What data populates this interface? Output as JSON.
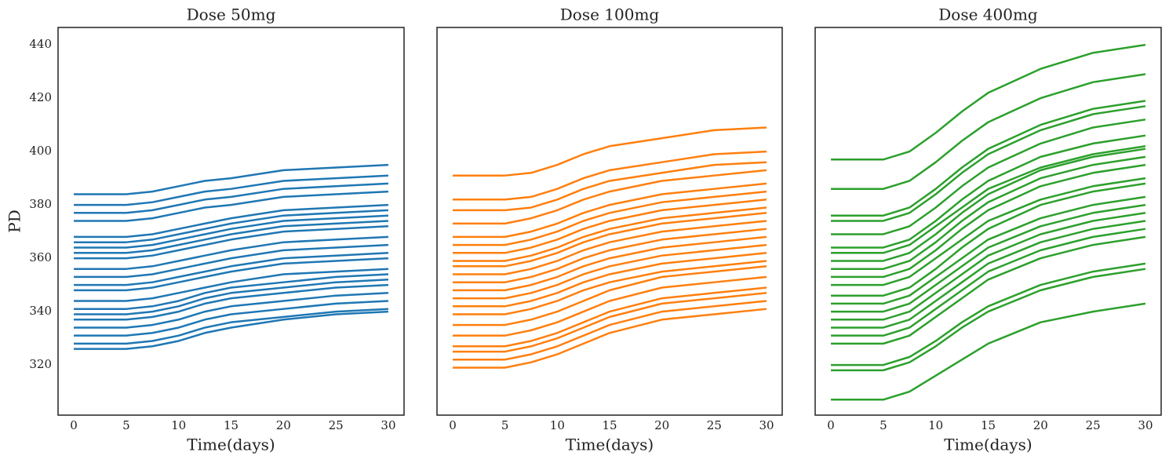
{
  "chart_data": [
    {
      "type": "line",
      "title": "Dose 50mg",
      "x_label": "Time(days)",
      "y_label": "PD",
      "color": "#1f77b4",
      "x": [
        0,
        5,
        7.5,
        10,
        12.5,
        15,
        20,
        25,
        30
      ],
      "xlim": [
        -1.5,
        31.5
      ],
      "xticks": [
        0,
        5,
        10,
        15,
        20,
        25,
        30
      ],
      "ylim": [
        301.2,
        446.5
      ],
      "yticks": [
        320,
        340,
        360,
        380,
        400,
        420,
        440
      ],
      "series": [
        {
          "values": [
            384,
            384,
            385,
            387,
            389,
            390,
            393,
            394,
            395
          ]
        },
        {
          "values": [
            380,
            380,
            381,
            383,
            385,
            386,
            389,
            390,
            391
          ]
        },
        {
          "values": [
            377,
            377,
            378,
            380,
            382,
            383,
            386,
            387,
            388
          ]
        },
        {
          "values": [
            374,
            374,
            375,
            377,
            379,
            380,
            383,
            384,
            385
          ]
        },
        {
          "values": [
            368,
            368,
            369,
            371,
            373,
            375,
            378,
            379,
            380
          ]
        },
        {
          "values": [
            366,
            366,
            367,
            369,
            371,
            373,
            376,
            377,
            378
          ]
        },
        {
          "values": [
            364,
            364,
            365,
            367,
            369,
            371,
            374,
            375,
            376
          ]
        },
        {
          "values": [
            362,
            362,
            363,
            365,
            367,
            369,
            372,
            373,
            374
          ]
        },
        {
          "values": [
            360,
            360,
            361,
            363,
            365,
            367,
            370,
            371,
            372
          ]
        },
        {
          "values": [
            356,
            356,
            357,
            359,
            361,
            363,
            366,
            367,
            368
          ]
        },
        {
          "values": [
            353,
            353,
            354,
            356,
            358,
            360,
            363,
            364,
            365
          ]
        },
        {
          "values": [
            350,
            350,
            351,
            353,
            355,
            357,
            360,
            361,
            362
          ]
        },
        {
          "values": [
            348,
            348,
            349,
            351,
            353,
            355,
            358,
            359,
            360
          ]
        },
        {
          "values": [
            344,
            344,
            345,
            347,
            349,
            351,
            354,
            355,
            356
          ]
        },
        {
          "values": [
            341,
            341,
            342,
            344,
            347,
            349,
            351,
            353,
            354
          ]
        },
        {
          "values": [
            339,
            339,
            340,
            342,
            345,
            347,
            349,
            351,
            352
          ]
        },
        {
          "values": [
            337,
            337,
            338,
            340,
            343,
            345,
            347,
            349,
            350
          ]
        },
        {
          "values": [
            334,
            334,
            335,
            337,
            340,
            342,
            344,
            346,
            347
          ]
        },
        {
          "values": [
            331,
            331,
            332,
            334,
            337,
            339,
            341,
            343,
            344
          ]
        },
        {
          "values": [
            328,
            328,
            329,
            331,
            334,
            336,
            338,
            340,
            341
          ]
        },
        {
          "values": [
            326,
            326,
            327,
            329,
            332,
            334,
            337,
            339,
            340
          ]
        }
      ]
    },
    {
      "type": "line",
      "title": "Dose 100mg",
      "x_label": "Time(days)",
      "color": "#ff7f0e",
      "x": [
        0,
        5,
        7.5,
        10,
        12.5,
        15,
        20,
        25,
        30
      ],
      "xlim": [
        -1.5,
        31.5
      ],
      "xticks": [
        0,
        5,
        10,
        15,
        20,
        25,
        30
      ],
      "ylim": [
        301.2,
        446.5
      ],
      "series": [
        {
          "values": [
            391,
            391,
            392,
            395,
            399,
            402,
            405,
            408,
            409
          ]
        },
        {
          "values": [
            382,
            382,
            383,
            386,
            390,
            393,
            396,
            399,
            400
          ]
        },
        {
          "values": [
            378,
            378,
            379,
            382,
            386,
            389,
            392,
            395,
            396
          ]
        },
        {
          "values": [
            373,
            373,
            375,
            378,
            382,
            385,
            389,
            391,
            393
          ]
        },
        {
          "values": [
            368,
            368,
            370,
            373,
            377,
            380,
            384,
            386,
            388
          ]
        },
        {
          "values": [
            365,
            365,
            367,
            370,
            374,
            377,
            381,
            383,
            385
          ]
        },
        {
          "values": [
            362,
            362,
            364,
            367,
            371,
            374,
            378,
            380,
            382
          ]
        },
        {
          "values": [
            359,
            359,
            361,
            364,
            368,
            371,
            375,
            377,
            379
          ]
        },
        {
          "values": [
            357,
            357,
            359,
            362,
            366,
            369,
            373,
            375,
            377
          ]
        },
        {
          "values": [
            354,
            354,
            356,
            359,
            363,
            366,
            370,
            372,
            374
          ]
        },
        {
          "values": [
            351,
            351,
            353,
            356,
            360,
            363,
            367,
            369,
            371
          ]
        },
        {
          "values": [
            348,
            348,
            350,
            353,
            357,
            360,
            364,
            366,
            368
          ]
        },
        {
          "values": [
            345,
            345,
            347,
            350,
            354,
            357,
            361,
            363,
            365
          ]
        },
        {
          "values": [
            342,
            342,
            344,
            347,
            351,
            354,
            358,
            360,
            362
          ]
        },
        {
          "values": [
            339,
            339,
            341,
            344,
            348,
            351,
            355,
            357,
            359
          ]
        },
        {
          "values": [
            335,
            335,
            337,
            340,
            344,
            348,
            353,
            355,
            357
          ]
        },
        {
          "values": [
            331,
            331,
            333,
            336,
            340,
            344,
            349,
            351,
            353
          ]
        },
        {
          "values": [
            327,
            327,
            329,
            332,
            336,
            340,
            345,
            347,
            349
          ]
        },
        {
          "values": [
            325,
            325,
            327,
            330,
            334,
            338,
            343,
            345,
            347
          ]
        },
        {
          "values": [
            322,
            322,
            324,
            327,
            331,
            335,
            340,
            342,
            344
          ]
        },
        {
          "values": [
            319,
            319,
            321,
            324,
            328,
            332,
            337,
            339,
            341
          ]
        }
      ]
    },
    {
      "type": "line",
      "title": "Dose 400mg",
      "x_label": "Time(days)",
      "color": "#2ca02c",
      "x": [
        0,
        5,
        7.5,
        10,
        12.5,
        15,
        20,
        25,
        30
      ],
      "xlim": [
        -1.5,
        31.5
      ],
      "xticks": [
        0,
        5,
        10,
        15,
        20,
        25,
        30
      ],
      "ylim": [
        301.2,
        446.5
      ],
      "series": [
        {
          "values": [
            397,
            397,
            400,
            407,
            415,
            422,
            431,
            437,
            440
          ]
        },
        {
          "values": [
            386,
            386,
            389,
            396,
            404,
            411,
            420,
            426,
            429
          ]
        },
        {
          "values": [
            376,
            376,
            379,
            386,
            394,
            401,
            410,
            416,
            419
          ]
        },
        {
          "values": [
            374,
            374,
            377,
            384,
            392,
            399,
            408,
            414,
            417
          ]
        },
        {
          "values": [
            369,
            369,
            372,
            379,
            387,
            394,
            403,
            409,
            412
          ]
        },
        {
          "values": [
            364,
            364,
            367,
            374,
            382,
            389,
            398,
            403,
            406
          ]
        },
        {
          "values": [
            362,
            362,
            365,
            372,
            379,
            386,
            394,
            399,
            402
          ]
        },
        {
          "values": [
            359,
            359,
            362,
            369,
            377,
            384,
            393,
            398,
            401
          ]
        },
        {
          "values": [
            356,
            356,
            359,
            366,
            374,
            381,
            390,
            395,
            398
          ]
        },
        {
          "values": [
            353,
            353,
            356,
            363,
            371,
            378,
            387,
            392,
            395
          ]
        },
        {
          "values": [
            350,
            350,
            353,
            360,
            367,
            374,
            382,
            387,
            390
          ]
        },
        {
          "values": [
            346,
            346,
            349,
            356,
            364,
            371,
            380,
            385,
            388
          ]
        },
        {
          "values": [
            343,
            343,
            346,
            353,
            360,
            367,
            375,
            380,
            383
          ]
        },
        {
          "values": [
            340,
            340,
            343,
            350,
            357,
            364,
            372,
            377,
            380
          ]
        },
        {
          "values": [
            337,
            337,
            340,
            347,
            354,
            361,
            369,
            374,
            377
          ]
        },
        {
          "values": [
            334,
            334,
            337,
            344,
            351,
            358,
            366,
            371,
            374
          ]
        },
        {
          "values": [
            331,
            331,
            334,
            341,
            348,
            355,
            363,
            368,
            371
          ]
        },
        {
          "values": [
            328,
            328,
            331,
            338,
            345,
            352,
            360,
            365,
            368
          ]
        },
        {
          "values": [
            320,
            320,
            323,
            329,
            336,
            342,
            350,
            355,
            358
          ]
        },
        {
          "values": [
            318,
            318,
            321,
            327,
            334,
            340,
            348,
            353,
            356
          ]
        },
        {
          "values": [
            307,
            307,
            310,
            316,
            322,
            328,
            336,
            340,
            343
          ]
        }
      ]
    }
  ]
}
